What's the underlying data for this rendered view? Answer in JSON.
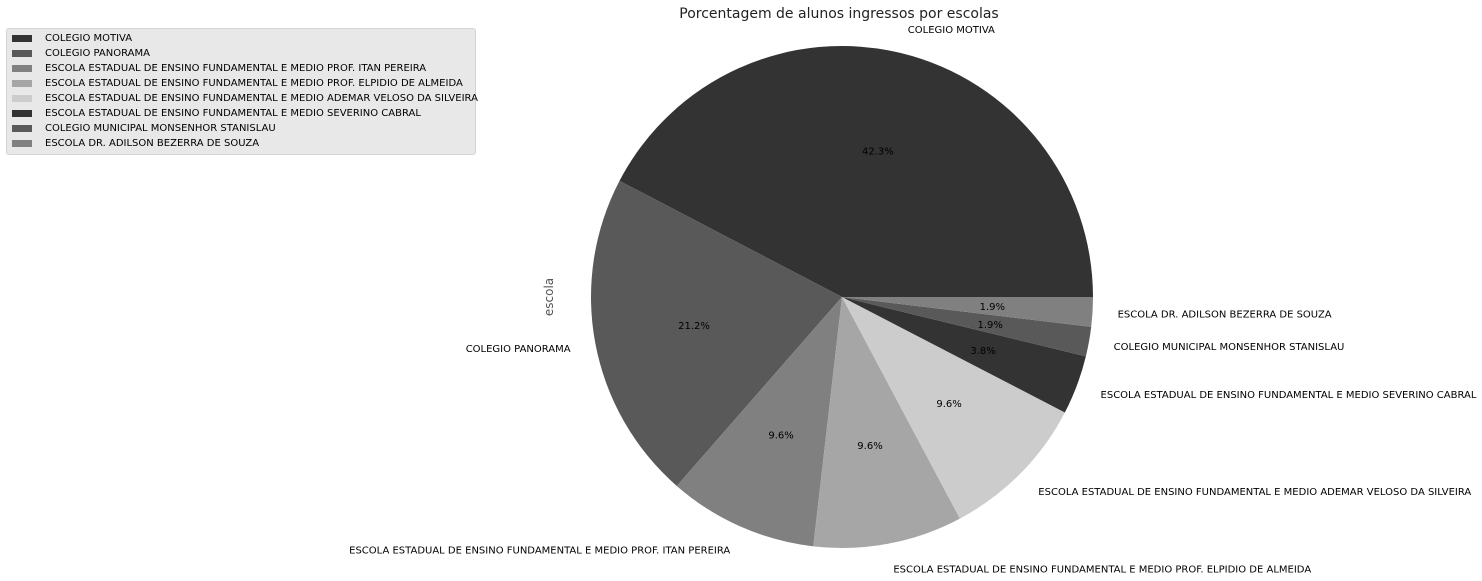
{
  "chart_data": {
    "type": "pie",
    "title": "Porcentagem de alunos ingressos por escolas",
    "ylabel": "escola",
    "legend_position": "top-left",
    "slices": [
      {
        "label": "COLEGIO MOTIVA",
        "value": 42.3,
        "pct_label": "42.3%",
        "color": "#333333"
      },
      {
        "label": "COLEGIO PANORAMA",
        "value": 21.2,
        "pct_label": "21.2%",
        "color": "#595959"
      },
      {
        "label": "ESCOLA ESTADUAL DE ENSINO FUNDAMENTAL E MEDIO PROF. ITAN PEREIRA",
        "value": 9.6,
        "pct_label": "9.6%",
        "color": "#808080"
      },
      {
        "label": "ESCOLA ESTADUAL DE ENSINO FUNDAMENTAL E MEDIO PROF. ELPIDIO DE ALMEIDA",
        "value": 9.6,
        "pct_label": "9.6%",
        "color": "#a6a6a6"
      },
      {
        "label": "ESCOLA ESTADUAL DE ENSINO FUNDAMENTAL E MEDIO ADEMAR VELOSO DA SILVEIRA",
        "value": 9.6,
        "pct_label": "9.6%",
        "color": "#cccccc"
      },
      {
        "label": "ESCOLA ESTADUAL DE ENSINO FUNDAMENTAL E MEDIO SEVERINO CABRAL",
        "value": 3.8,
        "pct_label": "3.8%",
        "color": "#333333"
      },
      {
        "label": "COLEGIO MUNICIPAL MONSENHOR STANISLAU",
        "value": 1.9,
        "pct_label": "1.9%",
        "color": "#595959"
      },
      {
        "label": "ESCOLA DR. ADILSON BEZERRA DE SOUZA",
        "value": 1.9,
        "pct_label": "1.9%",
        "color": "#808080"
      }
    ]
  }
}
